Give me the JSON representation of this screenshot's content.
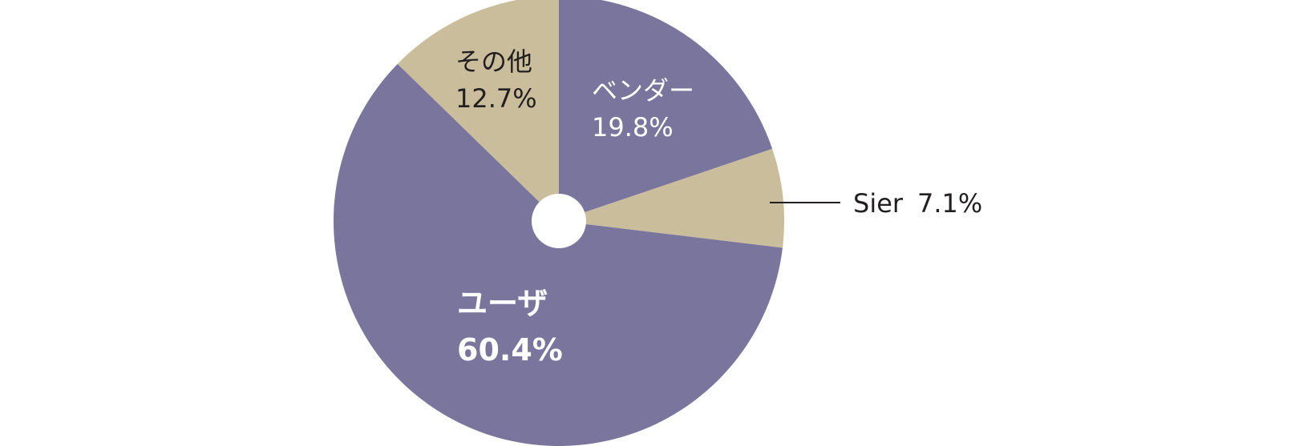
{
  "chart_data": {
    "type": "pie",
    "title": "",
    "donut": true,
    "start": "top",
    "direction": "clockwise",
    "slices": [
      {
        "label": "ベンダー",
        "value": 19.8,
        "text": "19.8%",
        "color": "#7a759d",
        "label_color": "#ffffff"
      },
      {
        "label": "Sier",
        "value": 7.1,
        "text": "7.1%",
        "color": "#c9bd9c",
        "label_color": "#231f20"
      },
      {
        "label": "ユーザ",
        "value": 60.4,
        "text": "60.4%",
        "color": "#7a759d",
        "label_color": "#ffffff"
      },
      {
        "label": "その他",
        "value": 12.7,
        "text": "12.7%",
        "color": "#c9bd9c",
        "label_color": "#231f20"
      }
    ]
  }
}
